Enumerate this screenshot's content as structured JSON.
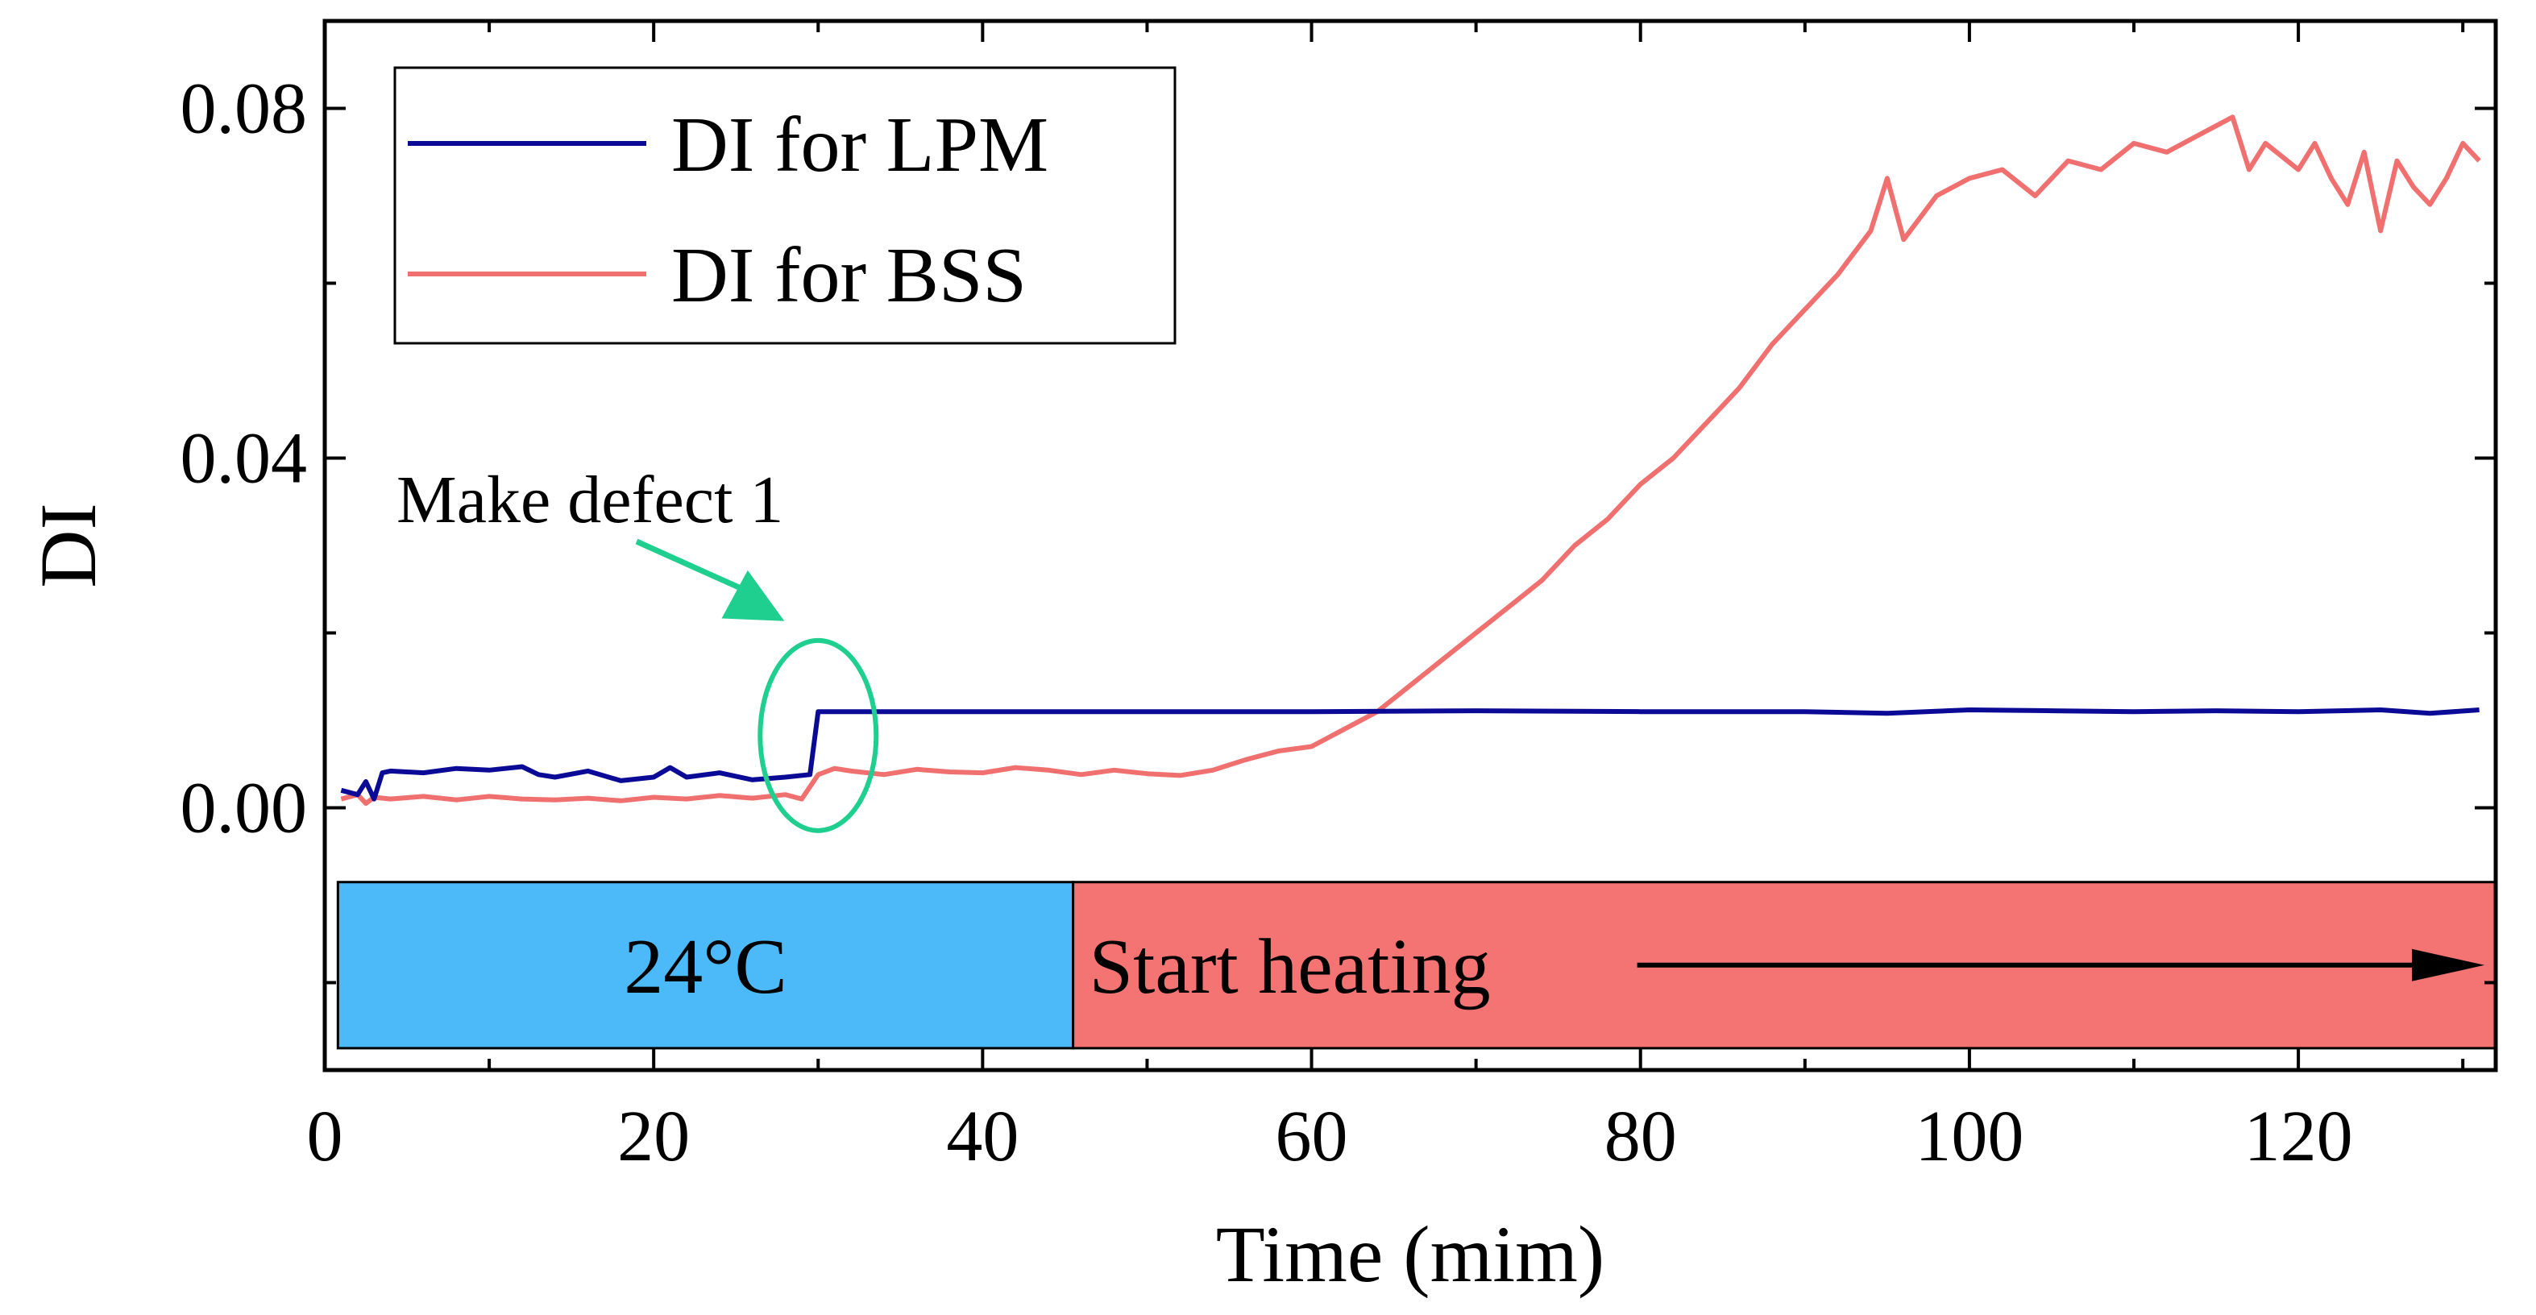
{
  "chart_data": {
    "type": "line",
    "xlabel": "Time (mim)",
    "ylabel": "DI",
    "xlim": [
      0,
      132
    ],
    "ylim": [
      -0.03,
      0.09
    ],
    "x_ticks": [
      0,
      20,
      40,
      60,
      80,
      100,
      120
    ],
    "x_tick_labels": [
      "0",
      "20",
      "40",
      "60",
      "80",
      "100",
      "120"
    ],
    "y_ticks": [
      0.0,
      0.04,
      0.08
    ],
    "y_tick_labels": [
      "0.00",
      "0.04",
      "0.08"
    ],
    "grid": false,
    "legend_position": "top-left",
    "series": [
      {
        "name": "DI for LPM",
        "color": "#0a0a96",
        "x": [
          1,
          2,
          2.5,
          3,
          3.5,
          4,
          6,
          8,
          10,
          12,
          13,
          14,
          16,
          18,
          20,
          21,
          22,
          24,
          26,
          28,
          29.5,
          30,
          32,
          40,
          50,
          60,
          70,
          80,
          90,
          95,
          100,
          105,
          110,
          115,
          120,
          125,
          128,
          131
        ],
        "values": [
          0.002,
          0.0015,
          0.003,
          0.001,
          0.004,
          0.0042,
          0.004,
          0.0045,
          0.0043,
          0.0047,
          0.0038,
          0.0035,
          0.0042,
          0.0031,
          0.0035,
          0.0046,
          0.0035,
          0.004,
          0.0032,
          0.0035,
          0.0038,
          0.011,
          0.011,
          0.011,
          0.011,
          0.011,
          0.0111,
          0.011,
          0.011,
          0.0108,
          0.0112,
          0.0111,
          0.011,
          0.0111,
          0.011,
          0.0112,
          0.0108,
          0.0112
        ]
      },
      {
        "name": "DI for BSS",
        "color": "#f07070",
        "x": [
          1,
          2,
          2.5,
          3,
          4,
          6,
          8,
          10,
          12,
          14,
          16,
          18,
          20,
          22,
          24,
          26,
          28,
          29,
          30,
          31,
          32,
          34,
          36,
          38,
          40,
          42,
          44,
          46,
          48,
          50,
          52,
          54,
          56,
          58,
          60,
          62,
          64,
          66,
          68,
          70,
          72,
          74,
          76,
          78,
          80,
          82,
          84,
          86,
          88,
          90,
          92,
          94,
          95,
          96,
          98,
          100,
          102,
          104,
          106,
          108,
          110,
          112,
          114,
          116,
          117,
          118,
          120,
          121,
          122,
          123,
          124,
          125,
          126,
          127,
          128,
          129,
          130,
          131
        ],
        "values": [
          0.001,
          0.0015,
          0.0005,
          0.0012,
          0.001,
          0.0013,
          0.0009,
          0.0013,
          0.001,
          0.0009,
          0.0011,
          0.0008,
          0.0012,
          0.001,
          0.0014,
          0.0011,
          0.0015,
          0.001,
          0.0038,
          0.0045,
          0.0042,
          0.0038,
          0.0044,
          0.0041,
          0.004,
          0.0046,
          0.0043,
          0.0038,
          0.0043,
          0.0039,
          0.0037,
          0.0043,
          0.0055,
          0.0065,
          0.007,
          0.009,
          0.011,
          0.014,
          0.017,
          0.02,
          0.023,
          0.026,
          0.03,
          0.033,
          0.037,
          0.04,
          0.044,
          0.048,
          0.053,
          0.057,
          0.061,
          0.066,
          0.072,
          0.065,
          0.07,
          0.072,
          0.073,
          0.07,
          0.074,
          0.073,
          0.076,
          0.075,
          0.077,
          0.079,
          0.073,
          0.076,
          0.073,
          0.076,
          0.072,
          0.069,
          0.075,
          0.066,
          0.074,
          0.071,
          0.069,
          0.072,
          0.076,
          0.074
        ]
      }
    ],
    "annotations": {
      "defect_label": "Make defect 1",
      "defect_x": 30,
      "defect_y": 0.0055,
      "color": "#1ecf8f"
    },
    "phase_bar": [
      {
        "label": "24°C",
        "x_start": 0.8,
        "x_end": 45.5,
        "color": "#4cbaf8"
      },
      {
        "label": "Start heating",
        "x_start": 45.5,
        "x_end": 132,
        "color": "#f47373"
      }
    ],
    "phase_bar_y": [
      -0.0085,
      -0.0275
    ]
  }
}
